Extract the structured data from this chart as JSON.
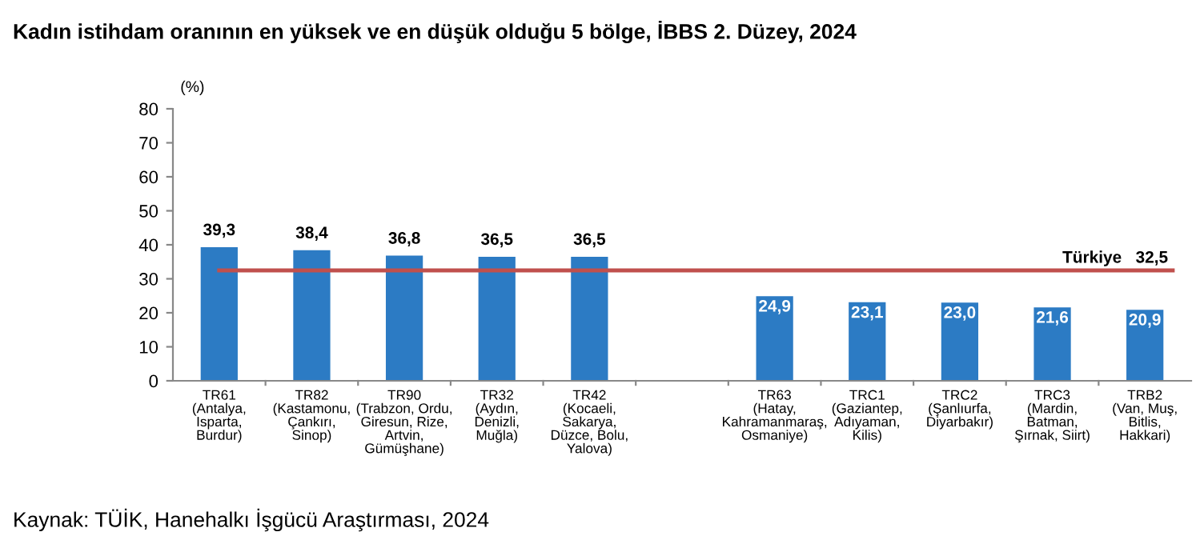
{
  "chart_data": {
    "type": "bar",
    "title": "Kadın istihdam oranının en yüksek ve en düşük olduğu 5 bölge, İBBS 2. Düzey, 2024",
    "ylabel": "(%)",
    "categories": [
      "TR61\n(Antalya,\nIsparta,\nBurdur)",
      "TR82\n(Kastamonu,\nÇankırı,\nSinop)",
      "TR90\n(Trabzon, Ordu,\nGiresun, Rize,\nArtvin,\nGümüşhane)",
      "TR32\n(Aydın,\nDenizli,\nMuğla)",
      "TR42\n(Kocaeli,\nSakarya,\nDüzce, Bolu,\nYalova)",
      null,
      "TR63\n(Hatay,\nKahramanmaraş,\nOsmaniye)",
      "TRC1\n(Gaziantep,\nAdıyaman,\nKilis)",
      "TRC2\n(Şanlıurfa,\nDiyarbakır)",
      "TRC3\n(Mardin,\nBatman,\nŞırnak, Siirt)",
      "TRB2\n(Van, Muş,\nBitlis,\nHakkari)"
    ],
    "values": [
      39.3,
      38.4,
      36.8,
      36.5,
      36.5,
      null,
      24.9,
      23.1,
      23.0,
      21.6,
      20.9
    ],
    "value_labels": [
      "39,3",
      "38,4",
      "36,8",
      "36,5",
      "36,5",
      null,
      "24,9",
      "23,1",
      "23,0",
      "21,6",
      "20,9"
    ],
    "color": "#2c7bc4",
    "ylim": [
      0,
      80
    ],
    "yticks": [
      0,
      10,
      20,
      30,
      40,
      50,
      60,
      70,
      80
    ],
    "grid": false,
    "ref_lines": [
      {
        "axis": "y",
        "value": 32.5,
        "label": "Türkiye   32,5",
        "color": "#c0504d",
        "line_style": "solid"
      }
    ],
    "annotations": [
      "Kaynak: TÜİK, Hanehalkı İşgücü Araştırması, 2024"
    ]
  }
}
